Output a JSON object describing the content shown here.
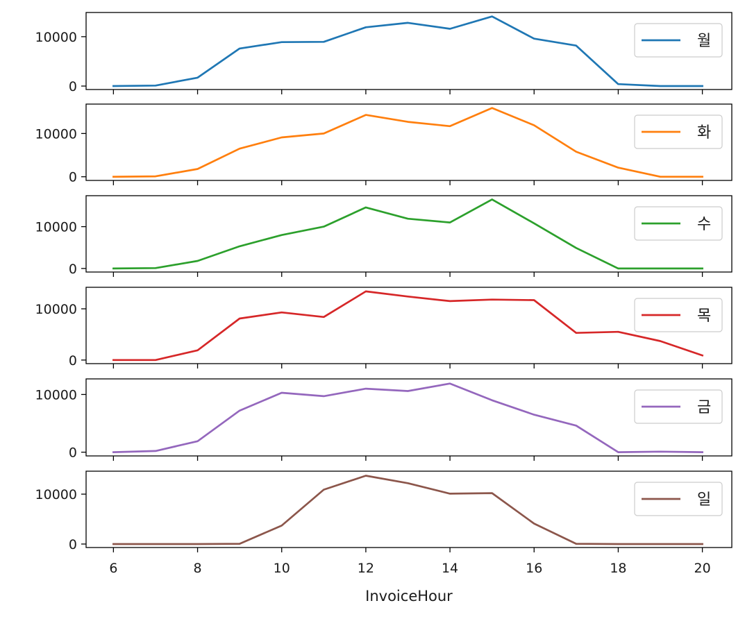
{
  "chart_data": {
    "type": "line",
    "layout": "stacked-subplots",
    "sharex": true,
    "xlabel": "InvoiceHour",
    "x": [
      6,
      7,
      8,
      9,
      10,
      11,
      12,
      13,
      14,
      15,
      16,
      17,
      18,
      19,
      20
    ],
    "xticks": [
      6,
      8,
      10,
      12,
      14,
      16,
      18,
      20
    ],
    "xlim": [
      5.35,
      20.7
    ],
    "yticks": [
      0,
      10000
    ],
    "legend_placement": "upper right",
    "grid": false,
    "series": [
      {
        "name": "월",
        "color": "#1f77b4",
        "ylim": [
          -700,
          14900
        ],
        "values": [
          0,
          100,
          1700,
          7600,
          8900,
          8950,
          11900,
          12800,
          11600,
          14100,
          9600,
          8200,
          400,
          0,
          0
        ]
      },
      {
        "name": "화",
        "color": "#ff7f0e",
        "ylim": [
          -850,
          16800
        ],
        "values": [
          0,
          100,
          1800,
          6500,
          9100,
          10000,
          14300,
          12700,
          11700,
          15900,
          11900,
          5800,
          2100,
          0,
          0
        ]
      },
      {
        "name": "수",
        "color": "#2ca02c",
        "ylim": [
          -850,
          17400
        ],
        "values": [
          0,
          100,
          1800,
          5300,
          8000,
          10000,
          14600,
          11900,
          11000,
          16500,
          10800,
          4900,
          0,
          0,
          0
        ]
      },
      {
        "name": "목",
        "color": "#d62728",
        "ylim": [
          -700,
          14200
        ],
        "values": [
          0,
          0,
          1900,
          8100,
          9300,
          8400,
          13400,
          12400,
          11500,
          11800,
          11700,
          5300,
          5500,
          3700,
          900
        ]
      },
      {
        "name": "금",
        "color": "#9467bd",
        "ylim": [
          -650,
          12700
        ],
        "values": [
          0,
          200,
          1900,
          7200,
          10300,
          9700,
          11000,
          10600,
          11900,
          9000,
          6500,
          4600,
          0,
          100,
          0
        ]
      },
      {
        "name": "일",
        "color": "#8c564b",
        "ylim": [
          -700,
          14600
        ],
        "values": [
          0,
          0,
          0,
          50,
          3700,
          10900,
          13700,
          12200,
          10100,
          10200,
          4100,
          50,
          0,
          0,
          0
        ]
      }
    ]
  }
}
